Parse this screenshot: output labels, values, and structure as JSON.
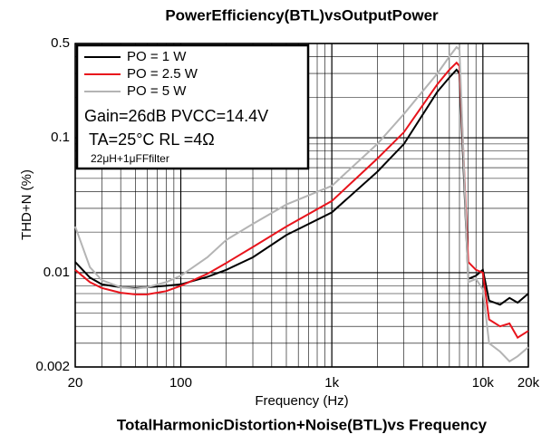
{
  "chart_data": {
    "type": "line",
    "title": "PowerEfficiency(BTL)vsOutputPower",
    "subtitle": "TotalHarmonicDistortion+Noise(BTL)vs Frequency",
    "x_label": "Frequency (Hz)",
    "y_label": "THD+N (%)",
    "x_log": true,
    "y_log": true,
    "grid": true,
    "minor_grid": true,
    "legend": "upper left",
    "annotations": [
      "Gain=26dB PVCC=14.4V",
      "TA=25°C RL =4Ω",
      "22μH+1μFFfilter"
    ],
    "xlim": [
      20,
      20000
    ],
    "xticks": [
      20,
      100,
      {
        "value": 1000,
        "label": "1k"
      },
      {
        "value": 10000,
        "label": "10k"
      },
      {
        "value": 20000,
        "label": "20k"
      }
    ],
    "ylim": [
      0.002,
      0.5
    ],
    "yticks": [
      0.002,
      0.01,
      0.1,
      0.5
    ],
    "x": [
      20,
      25,
      30,
      40,
      50,
      60,
      80,
      100,
      150,
      200,
      300,
      500,
      1000,
      2000,
      3000,
      5000,
      6000,
      6700,
      7000,
      8000,
      9000,
      10000,
      11000,
      13000,
      15000,
      17000,
      20000
    ],
    "series": [
      {
        "name": "PO = 1 W",
        "color": "#000000",
        "values": [
          0.012,
          0.0092,
          0.0082,
          0.0078,
          0.0077,
          0.0078,
          0.008,
          0.0082,
          0.0093,
          0.0105,
          0.013,
          0.019,
          0.028,
          0.056,
          0.09,
          0.22,
          0.28,
          0.32,
          0.3,
          0.009,
          0.0095,
          0.0105,
          0.0062,
          0.0058,
          0.0065,
          0.006,
          0.007
        ]
      },
      {
        "name": "PO = 2.5 W",
        "color": "#e8141c",
        "values": [
          0.0105,
          0.0085,
          0.0077,
          0.0071,
          0.0069,
          0.0069,
          0.0073,
          0.008,
          0.0098,
          0.0118,
          0.0155,
          0.022,
          0.034,
          0.07,
          0.11,
          0.25,
          0.32,
          0.36,
          0.34,
          0.012,
          0.0105,
          0.01,
          0.0045,
          0.004,
          0.0042,
          0.0033,
          0.0037
        ]
      },
      {
        "name": "PO = 5 W",
        "color": "#b4b4b4",
        "values": [
          0.022,
          0.011,
          0.0088,
          0.0078,
          0.0076,
          0.0078,
          0.0085,
          0.0095,
          0.013,
          0.0175,
          0.023,
          0.032,
          0.044,
          0.09,
          0.15,
          0.3,
          0.4,
          0.47,
          0.45,
          0.0085,
          0.009,
          0.0075,
          0.003,
          0.0026,
          0.0022,
          0.0024,
          0.0028
        ]
      }
    ]
  }
}
